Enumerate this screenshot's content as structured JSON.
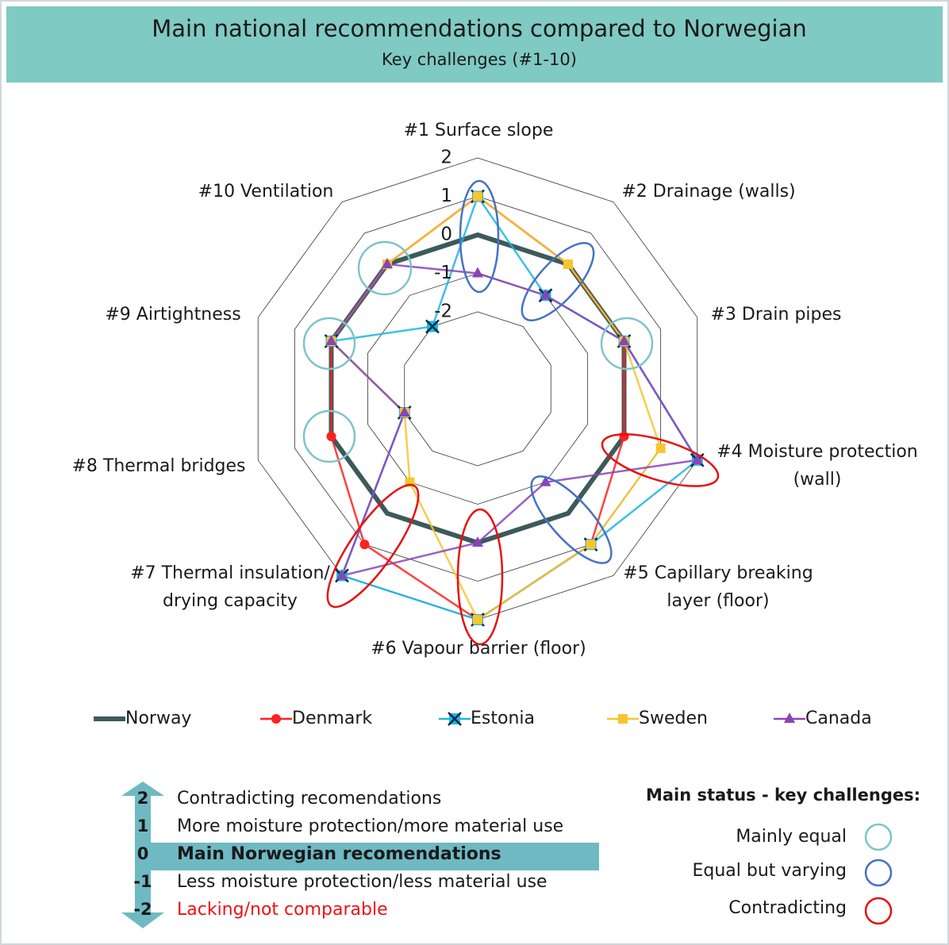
{
  "chart_data": {
    "type": "radar",
    "title": "Main national recommendations compared to Norwegian",
    "subtitle": "Key challenges (#1-10)",
    "categories": [
      "#1 Surface slope",
      "#2 Drainage (walls)",
      "#3 Drain pipes",
      "#4 Moisture protection\n(wall)",
      "#5 Capillary breaking\nlayer (floor)",
      "#6 Vapour barrier (floor)",
      "#7 Thermal insulation/\ndrying capacity",
      "#8 Thermal bridges",
      "#9 Airtightness",
      "#10 Ventilation"
    ],
    "ylim": [
      -4,
      2
    ],
    "yticks": [
      -2,
      -1,
      0,
      1,
      2
    ],
    "series": [
      {
        "name": "Norway",
        "color": "#3d5a5a",
        "values": [
          0,
          0,
          0,
          0,
          0,
          0,
          0,
          0,
          0,
          0
        ]
      },
      {
        "name": "Denmark",
        "color": "#ff2020",
        "values": [
          1,
          0,
          0,
          0,
          1,
          2,
          1,
          0,
          0,
          0
        ]
      },
      {
        "name": "Estonia",
        "color": "#1fb4e0",
        "values": [
          1,
          -1,
          0,
          2,
          1,
          2,
          2,
          -2,
          0,
          -2
        ]
      },
      {
        "name": "Sweden",
        "color": "#f7c52e",
        "values": [
          1,
          0,
          0,
          1,
          1,
          2,
          -1,
          -2,
          0,
          0
        ]
      },
      {
        "name": "Canada",
        "color": "#8a44b8",
        "values": [
          -1,
          -1,
          0,
          2,
          -1,
          0,
          2,
          -2,
          0,
          0
        ]
      }
    ]
  },
  "key": {
    "levels": [
      {
        "value": 2,
        "text": "Contradicting recomendations"
      },
      {
        "value": 1,
        "text": "More moisture protection/more material use"
      },
      {
        "value": 0,
        "text": "Main Norwegian recomendations"
      },
      {
        "value": -1,
        "text": "Less moisture protection/less material use"
      },
      {
        "value": -2,
        "text": "Lacking/not comparable"
      }
    ],
    "status_title": "Main status - key challenges:",
    "status": [
      "Mainly equal",
      "Equal but varying",
      "Contradicting"
    ]
  }
}
